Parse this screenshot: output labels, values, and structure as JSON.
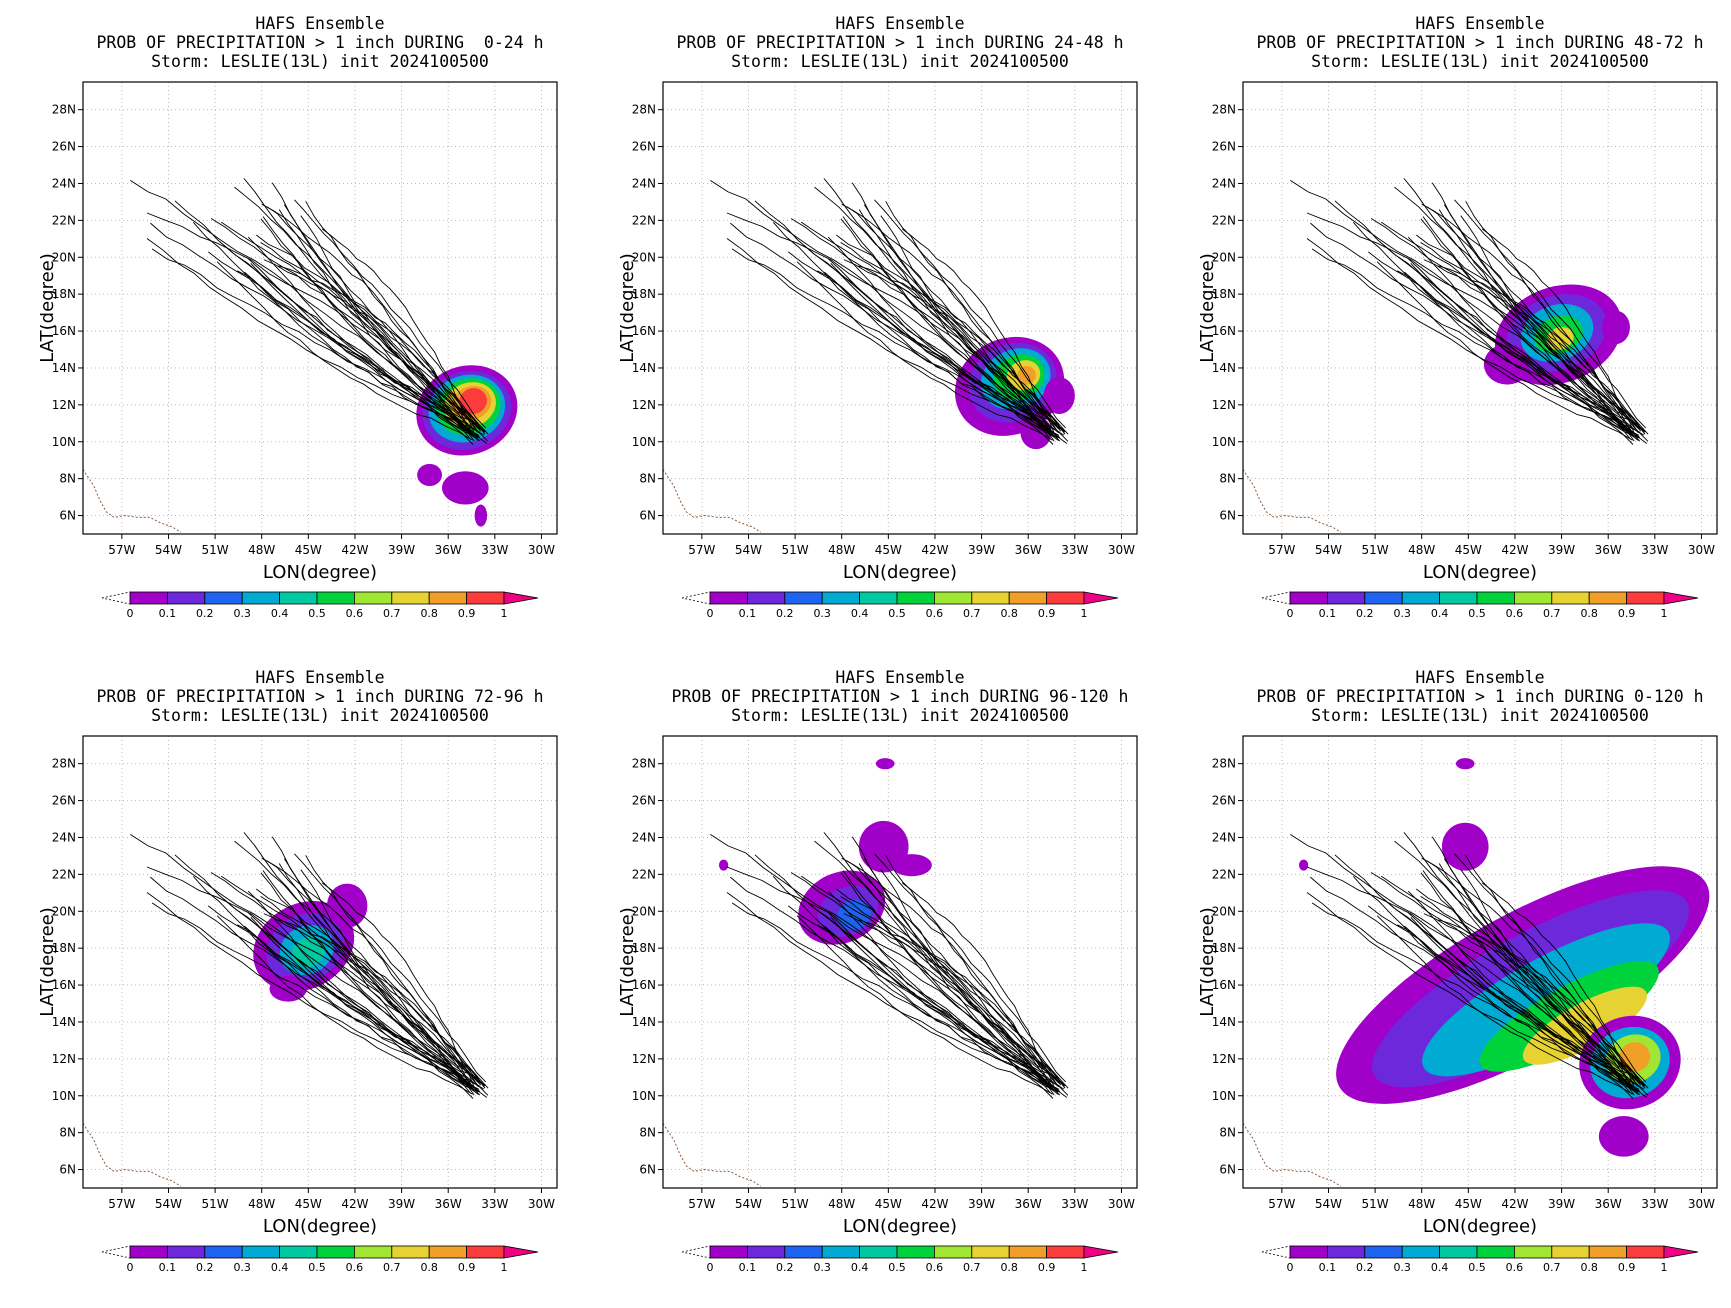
{
  "figure": {
    "panels": [
      {
        "title_1": "HAFS Ensemble",
        "title_2": "PROB OF PRECIPITATION > 1 inch DURING  0-24 h",
        "title_3": "Storm: LESLIE(13L) init 2024100500",
        "lon_range": [
          -59.5,
          -29
        ],
        "lat_range": [
          5,
          29.5
        ]
      },
      {
        "title_1": "HAFS Ensemble",
        "title_2": "PROB OF PRECIPITATION > 1 inch DURING 24-48 h",
        "title_3": "Storm: LESLIE(13L) init 2024100500",
        "lon_range": [
          -59.5,
          -29
        ],
        "lat_range": [
          5,
          29.5
        ]
      },
      {
        "title_1": "HAFS Ensemble",
        "title_2": "PROB OF PRECIPITATION > 1 inch DURING 48-72 h",
        "title_3": "Storm: LESLIE(13L) init 2024100500",
        "lon_range": [
          -59.5,
          -29
        ],
        "lat_range": [
          5,
          29.5
        ]
      },
      {
        "title_1": "HAFS Ensemble",
        "title_2": "PROB OF PRECIPITATION > 1 inch DURING 72-96 h",
        "title_3": "Storm: LESLIE(13L) init 2024100500",
        "lon_range": [
          -59.5,
          -29
        ],
        "lat_range": [
          5,
          29.5
        ]
      },
      {
        "title_1": "HAFS Ensemble",
        "title_2": "PROB OF PRECIPITATION > 1 inch DURING 96-120 h",
        "title_3": "Storm: LESLIE(13L) init 2024100500",
        "lon_range": [
          -59.5,
          -29
        ],
        "lat_range": [
          5,
          29.5
        ]
      },
      {
        "title_1": "HAFS Ensemble",
        "title_2": "PROB OF PRECIPITATION > 1 inch DURING 0-120 h",
        "title_3": "Storm: LESLIE(13L) init 2024100500",
        "lon_range": [
          -59.5,
          -29
        ],
        "lat_range": [
          5,
          29.5
        ]
      }
    ],
    "xlabel": "LON(degree)",
    "ylabel": "LAT(degree)",
    "lon_ticks": [
      "57W",
      "54W",
      "51W",
      "48W",
      "45W",
      "42W",
      "39W",
      "36W",
      "33W",
      "30W"
    ],
    "lat_ticks": [
      "6N",
      "8N",
      "10N",
      "12N",
      "14N",
      "16N",
      "18N",
      "20N",
      "22N",
      "24N",
      "26N",
      "28N"
    ],
    "colorbar_labels": [
      "0",
      "0.1",
      "0.2",
      "0.3",
      "0.4",
      "0.5",
      "0.6",
      "0.7",
      "0.8",
      "0.9",
      "1"
    ],
    "colorbar_colors": [
      "#a000c8",
      "#6e28dc",
      "#1e64f0",
      "#00aad2",
      "#00c8a0",
      "#00d23c",
      "#a0e632",
      "#e6d232",
      "#f0a028",
      "#fa3c3c",
      "#f00082"
    ],
    "blob_colors": [
      "#a000c8",
      "#6e28dc",
      "#1e64f0",
      "#00aad2",
      "#00c8a0",
      "#00d23c",
      "#a0e632",
      "#e6d232",
      "#f0a028",
      "#fa3c3c"
    ],
    "track_color": "#000000",
    "coast_color": "#8a5a3c",
    "grid": true,
    "forecast_blobs": [
      [
        {
          "lon": -34.8,
          "lat": 11.7,
          "rlon": 3.3,
          "rlat": 2.4,
          "rot": -20,
          "prob": 0.0
        },
        {
          "lon": -34.8,
          "lat": 11.7,
          "rlon": 2.9,
          "rlat": 2.1,
          "rot": -20,
          "prob": 0.12
        },
        {
          "lon": -34.8,
          "lat": 11.8,
          "rlon": 2.5,
          "rlat": 1.8,
          "rot": -20,
          "prob": 0.3
        },
        {
          "lon": -34.7,
          "lat": 11.9,
          "rlon": 2.1,
          "rlat": 1.5,
          "rot": -20,
          "prob": 0.5
        },
        {
          "lon": -34.6,
          "lat": 12.0,
          "rlon": 1.7,
          "rlat": 1.2,
          "rot": -20,
          "prob": 0.7
        },
        {
          "lon": -34.5,
          "lat": 12.1,
          "rlon": 1.3,
          "rlat": 0.9,
          "rot": -20,
          "prob": 0.82
        },
        {
          "lon": -34.4,
          "lat": 12.2,
          "rlon": 0.9,
          "rlat": 0.7,
          "rot": -20,
          "prob": 0.92
        },
        {
          "lon": -37.2,
          "lat": 8.2,
          "rlon": 0.8,
          "rlat": 0.6,
          "rot": 0,
          "prob": 0.0
        },
        {
          "lon": -34.9,
          "lat": 7.5,
          "rlon": 1.5,
          "rlat": 0.9,
          "rot": 0,
          "prob": 0.0
        },
        {
          "lon": -33.9,
          "lat": 6.0,
          "rlon": 0.4,
          "rlat": 0.6,
          "rot": 0,
          "prob": 0.0
        }
      ],
      [
        {
          "lon": -37.2,
          "lat": 13.0,
          "rlon": 3.6,
          "rlat": 2.6,
          "rot": -25,
          "prob": 0.0
        },
        {
          "lon": -37.0,
          "lat": 13.2,
          "rlon": 2.9,
          "rlat": 2.1,
          "rot": -25,
          "prob": 0.15
        },
        {
          "lon": -36.8,
          "lat": 13.4,
          "rlon": 2.3,
          "rlat": 1.6,
          "rot": -25,
          "prob": 0.35
        },
        {
          "lon": -36.6,
          "lat": 13.5,
          "rlon": 1.7,
          "rlat": 1.2,
          "rot": -25,
          "prob": 0.55
        },
        {
          "lon": -36.3,
          "lat": 13.6,
          "rlon": 1.1,
          "rlat": 0.8,
          "rot": -25,
          "prob": 0.75
        },
        {
          "lon": -36.1,
          "lat": 13.6,
          "rlon": 0.6,
          "rlat": 0.5,
          "rot": -25,
          "prob": 0.85
        },
        {
          "lon": -35.5,
          "lat": 10.5,
          "rlon": 1.0,
          "rlat": 0.9,
          "rot": 0,
          "prob": 0.0
        },
        {
          "lon": -34.0,
          "lat": 12.5,
          "rlon": 1.0,
          "rlat": 1.0,
          "rot": 0,
          "prob": 0.0
        }
      ],
      [
        {
          "lon": -39.2,
          "lat": 15.8,
          "rlon": 4.2,
          "rlat": 2.6,
          "rot": -20,
          "prob": 0.0
        },
        {
          "lon": -39.3,
          "lat": 15.9,
          "rlon": 3.3,
          "rlat": 2.0,
          "rot": -20,
          "prob": 0.12
        },
        {
          "lon": -39.3,
          "lat": 15.9,
          "rlon": 2.4,
          "rlat": 1.5,
          "rot": -20,
          "prob": 0.3
        },
        {
          "lon": -39.2,
          "lat": 15.8,
          "rlon": 1.6,
          "rlat": 1.0,
          "rot": -20,
          "prob": 0.55
        },
        {
          "lon": -39.1,
          "lat": 15.6,
          "rlon": 0.9,
          "rlat": 0.6,
          "rot": -20,
          "prob": 0.75
        },
        {
          "lon": -42.5,
          "lat": 14.2,
          "rlon": 1.5,
          "rlat": 1.1,
          "rot": 0,
          "prob": 0.0
        },
        {
          "lon": -35.5,
          "lat": 16.2,
          "rlon": 0.9,
          "rlat": 0.9,
          "rot": 0,
          "prob": 0.0
        }
      ],
      [
        {
          "lon": -45.3,
          "lat": 18.1,
          "rlon": 3.4,
          "rlat": 2.3,
          "rot": -30,
          "prob": 0.0
        },
        {
          "lon": -45.2,
          "lat": 18.0,
          "rlon": 2.6,
          "rlat": 1.8,
          "rot": -30,
          "prob": 0.12
        },
        {
          "lon": -45.1,
          "lat": 17.9,
          "rlon": 1.8,
          "rlat": 1.3,
          "rot": -30,
          "prob": 0.3
        },
        {
          "lon": -45.0,
          "lat": 17.8,
          "rlon": 1.1,
          "rlat": 0.8,
          "rot": -30,
          "prob": 0.45
        },
        {
          "lon": -42.5,
          "lat": 20.3,
          "rlon": 1.3,
          "rlat": 1.2,
          "rot": 0,
          "prob": 0.0
        },
        {
          "lon": -46.3,
          "lat": 15.8,
          "rlon": 1.2,
          "rlat": 0.7,
          "rot": 0,
          "prob": 0.0
        }
      ],
      [
        {
          "lon": -48.0,
          "lat": 20.2,
          "rlon": 2.9,
          "rlat": 1.9,
          "rot": -25,
          "prob": 0.0
        },
        {
          "lon": -47.6,
          "lat": 20.0,
          "rlon": 2.0,
          "rlat": 1.3,
          "rot": -25,
          "prob": 0.12
        },
        {
          "lon": -47.2,
          "lat": 19.8,
          "rlon": 1.1,
          "rlat": 0.8,
          "rot": -25,
          "prob": 0.22
        },
        {
          "lon": -45.3,
          "lat": 23.5,
          "rlon": 1.6,
          "rlat": 1.4,
          "rot": 0,
          "prob": 0.0
        },
        {
          "lon": -43.5,
          "lat": 22.5,
          "rlon": 1.3,
          "rlat": 0.6,
          "rot": 0,
          "prob": 0.0
        },
        {
          "lon": -45.2,
          "lat": 28.0,
          "rlon": 0.6,
          "rlat": 0.3,
          "rot": 0,
          "prob": 0.0
        },
        {
          "lon": -55.6,
          "lat": 22.5,
          "rlon": 0.3,
          "rlat": 0.3,
          "rot": 0,
          "prob": 0.0
        }
      ],
      [
        {
          "lon": -41.5,
          "lat": 16.0,
          "rlon": 13.5,
          "rlat": 3.8,
          "rot": -29,
          "prob": 0.0
        },
        {
          "lon": -41.0,
          "lat": 15.8,
          "rlon": 11.5,
          "rlat": 2.9,
          "rot": -29,
          "prob": 0.12
        },
        {
          "lon": -40.0,
          "lat": 15.2,
          "rlon": 9.0,
          "rlat": 2.2,
          "rot": -29,
          "prob": 0.3
        },
        {
          "lon": -38.5,
          "lat": 14.3,
          "rlon": 6.5,
          "rlat": 1.6,
          "rot": -29,
          "prob": 0.5
        },
        {
          "lon": -37.5,
          "lat": 13.8,
          "rlon": 4.5,
          "rlat": 1.2,
          "rot": -29,
          "prob": 0.7
        },
        {
          "lon": -34.6,
          "lat": 11.8,
          "rlon": 3.3,
          "rlat": 2.5,
          "rot": -20,
          "prob": 0.0
        },
        {
          "lon": -34.6,
          "lat": 11.8,
          "rlon": 2.6,
          "rlat": 1.9,
          "rot": -20,
          "prob": 0.3
        },
        {
          "lon": -34.4,
          "lat": 12.0,
          "rlon": 1.8,
          "rlat": 1.3,
          "rot": -20,
          "prob": 0.6
        },
        {
          "lon": -34.3,
          "lat": 12.1,
          "rlon": 1.0,
          "rlat": 0.8,
          "rot": -20,
          "prob": 0.85
        },
        {
          "lon": -35.0,
          "lat": 7.8,
          "rlon": 1.6,
          "rlat": 1.1,
          "rot": 0,
          "prob": 0.0
        },
        {
          "lon": -45.2,
          "lat": 23.5,
          "rlon": 1.5,
          "rlat": 1.3,
          "rot": 0,
          "prob": 0.0
        },
        {
          "lon": -45.2,
          "lat": 28.0,
          "rlon": 0.6,
          "rlat": 0.3,
          "rot": 0,
          "prob": 0.0
        },
        {
          "lon": -55.6,
          "lat": 22.5,
          "rlon": 0.3,
          "rlat": 0.3,
          "rot": 0,
          "prob": 0.0
        }
      ]
    ]
  }
}
